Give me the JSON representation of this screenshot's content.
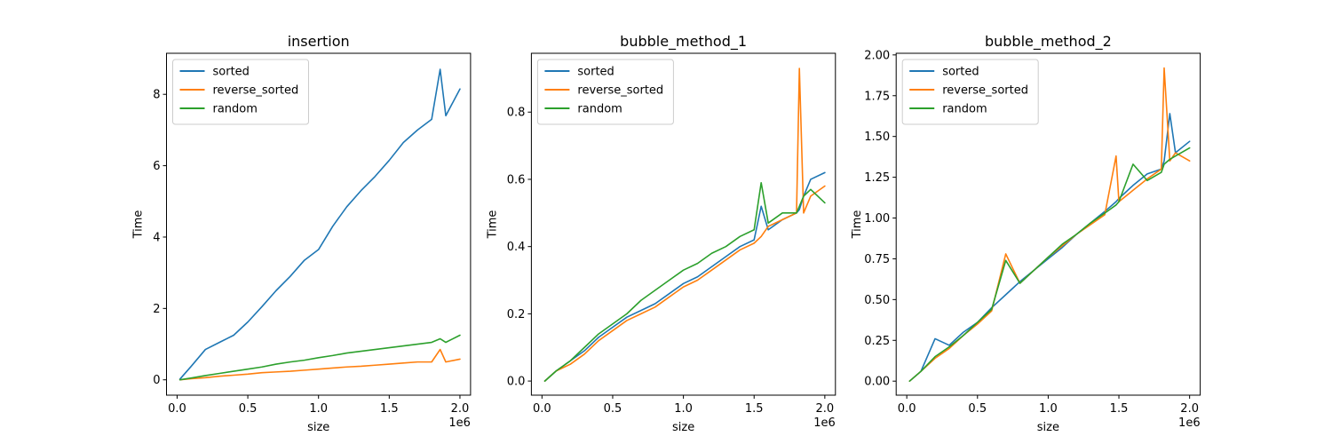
{
  "chart_data": [
    {
      "type": "line",
      "title": "insertion",
      "xlabel": "size",
      "ylabel": "Time",
      "x_offset_label": "1e6",
      "xlim": [
        -0.075,
        2.075
      ],
      "ylim": [
        -0.43,
        9.15
      ],
      "xticks": [
        0.0,
        0.5,
        1.0,
        1.5,
        2.0
      ],
      "xtick_labels": [
        "0.0",
        "0.5",
        "1.0",
        "1.5",
        "2.0"
      ],
      "yticks": [
        0,
        2,
        4,
        6,
        8
      ],
      "ytick_labels": [
        "0",
        "2",
        "4",
        "6",
        "8"
      ],
      "legend_position": "upper-left",
      "x": [
        0.02,
        0.1,
        0.2,
        0.3,
        0.4,
        0.5,
        0.6,
        0.7,
        0.8,
        0.9,
        1.0,
        1.1,
        1.2,
        1.3,
        1.4,
        1.5,
        1.6,
        1.7,
        1.8,
        1.86,
        1.9,
        2.0
      ],
      "series": [
        {
          "name": "sorted",
          "color": "#1f77b4",
          "values": [
            0.02,
            0.38,
            0.85,
            1.05,
            1.25,
            1.62,
            2.05,
            2.5,
            2.9,
            3.35,
            3.65,
            4.3,
            4.85,
            5.3,
            5.7,
            6.15,
            6.65,
            7.0,
            7.3,
            8.7,
            7.4,
            8.15
          ]
        },
        {
          "name": "reverse_sorted",
          "color": "#ff7f0e",
          "values": [
            0.0,
            0.03,
            0.06,
            0.1,
            0.13,
            0.16,
            0.2,
            0.22,
            0.24,
            0.27,
            0.3,
            0.33,
            0.36,
            0.38,
            0.41,
            0.44,
            0.47,
            0.5,
            0.5,
            0.85,
            0.5,
            0.58
          ]
        },
        {
          "name": "random",
          "color": "#2ca02c",
          "values": [
            0.0,
            0.05,
            0.12,
            0.18,
            0.24,
            0.3,
            0.36,
            0.44,
            0.5,
            0.55,
            0.62,
            0.68,
            0.75,
            0.8,
            0.85,
            0.9,
            0.95,
            1.0,
            1.05,
            1.15,
            1.05,
            1.25
          ]
        }
      ]
    },
    {
      "type": "line",
      "title": "bubble_method_1",
      "xlabel": "size",
      "ylabel": "Time",
      "x_offset_label": "1e6",
      "xlim": [
        -0.075,
        2.075
      ],
      "ylim": [
        -0.042,
        0.975
      ],
      "xticks": [
        0.0,
        0.5,
        1.0,
        1.5,
        2.0
      ],
      "xtick_labels": [
        "0.0",
        "0.5",
        "1.0",
        "1.5",
        "2.0"
      ],
      "yticks": [
        0.0,
        0.2,
        0.4,
        0.6,
        0.8
      ],
      "ytick_labels": [
        "0.0",
        "0.2",
        "0.4",
        "0.6",
        "0.8"
      ],
      "legend_position": "upper-left",
      "x": [
        0.02,
        0.1,
        0.2,
        0.3,
        0.4,
        0.5,
        0.6,
        0.7,
        0.8,
        0.9,
        1.0,
        1.1,
        1.2,
        1.3,
        1.4,
        1.5,
        1.55,
        1.6,
        1.7,
        1.8,
        1.82,
        1.85,
        1.9,
        2.0
      ],
      "series": [
        {
          "name": "sorted",
          "color": "#1f77b4",
          "values": [
            0.0,
            0.03,
            0.06,
            0.09,
            0.13,
            0.16,
            0.19,
            0.21,
            0.23,
            0.26,
            0.29,
            0.31,
            0.34,
            0.37,
            0.4,
            0.42,
            0.52,
            0.45,
            0.48,
            0.5,
            0.51,
            0.55,
            0.6,
            0.62
          ]
        },
        {
          "name": "reverse_sorted",
          "color": "#ff7f0e",
          "values": [
            0.0,
            0.03,
            0.05,
            0.08,
            0.12,
            0.15,
            0.18,
            0.2,
            0.22,
            0.25,
            0.28,
            0.3,
            0.33,
            0.36,
            0.39,
            0.41,
            0.43,
            0.46,
            0.48,
            0.5,
            0.93,
            0.5,
            0.55,
            0.58
          ]
        },
        {
          "name": "random",
          "color": "#2ca02c",
          "values": [
            0.0,
            0.03,
            0.06,
            0.1,
            0.14,
            0.17,
            0.2,
            0.24,
            0.27,
            0.3,
            0.33,
            0.35,
            0.38,
            0.4,
            0.43,
            0.45,
            0.59,
            0.47,
            0.5,
            0.5,
            0.52,
            0.55,
            0.57,
            0.53
          ]
        }
      ]
    },
    {
      "type": "line",
      "title": "bubble_method_2",
      "xlabel": "size",
      "ylabel": "Time",
      "x_offset_label": "1e6",
      "xlim": [
        -0.075,
        2.075
      ],
      "ylim": [
        -0.086,
        2.01
      ],
      "xticks": [
        0.0,
        0.5,
        1.0,
        1.5,
        2.0
      ],
      "xtick_labels": [
        "0.0",
        "0.5",
        "1.0",
        "1.5",
        "2.0"
      ],
      "yticks": [
        0.0,
        0.25,
        0.5,
        0.75,
        1.0,
        1.25,
        1.5,
        1.75,
        2.0
      ],
      "ytick_labels": [
        "0.00",
        "0.25",
        "0.50",
        "0.75",
        "1.00",
        "1.25",
        "1.50",
        "1.75",
        "2.00"
      ],
      "legend_position": "upper-left",
      "x": [
        0.02,
        0.1,
        0.2,
        0.3,
        0.4,
        0.5,
        0.6,
        0.7,
        0.8,
        0.9,
        1.0,
        1.1,
        1.2,
        1.3,
        1.4,
        1.48,
        1.5,
        1.6,
        1.7,
        1.8,
        1.82,
        1.86,
        1.9,
        2.0
      ],
      "series": [
        {
          "name": "sorted",
          "color": "#1f77b4",
          "values": [
            0.0,
            0.06,
            0.26,
            0.22,
            0.3,
            0.36,
            0.45,
            0.53,
            0.61,
            0.68,
            0.75,
            0.82,
            0.9,
            0.97,
            1.04,
            1.1,
            1.12,
            1.2,
            1.27,
            1.3,
            1.35,
            1.64,
            1.4,
            1.47
          ]
        },
        {
          "name": "reverse_sorted",
          "color": "#ff7f0e",
          "values": [
            0.0,
            0.06,
            0.14,
            0.2,
            0.28,
            0.35,
            0.43,
            0.78,
            0.6,
            0.68,
            0.76,
            0.83,
            0.9,
            0.96,
            1.02,
            1.38,
            1.1,
            1.17,
            1.24,
            1.3,
            1.92,
            1.35,
            1.4,
            1.35
          ]
        },
        {
          "name": "random",
          "color": "#2ca02c",
          "values": [
            0.0,
            0.06,
            0.15,
            0.21,
            0.28,
            0.36,
            0.44,
            0.74,
            0.6,
            0.68,
            0.76,
            0.84,
            0.9,
            0.97,
            1.03,
            1.08,
            1.1,
            1.33,
            1.23,
            1.28,
            1.33,
            1.36,
            1.38,
            1.43
          ]
        }
      ]
    }
  ]
}
